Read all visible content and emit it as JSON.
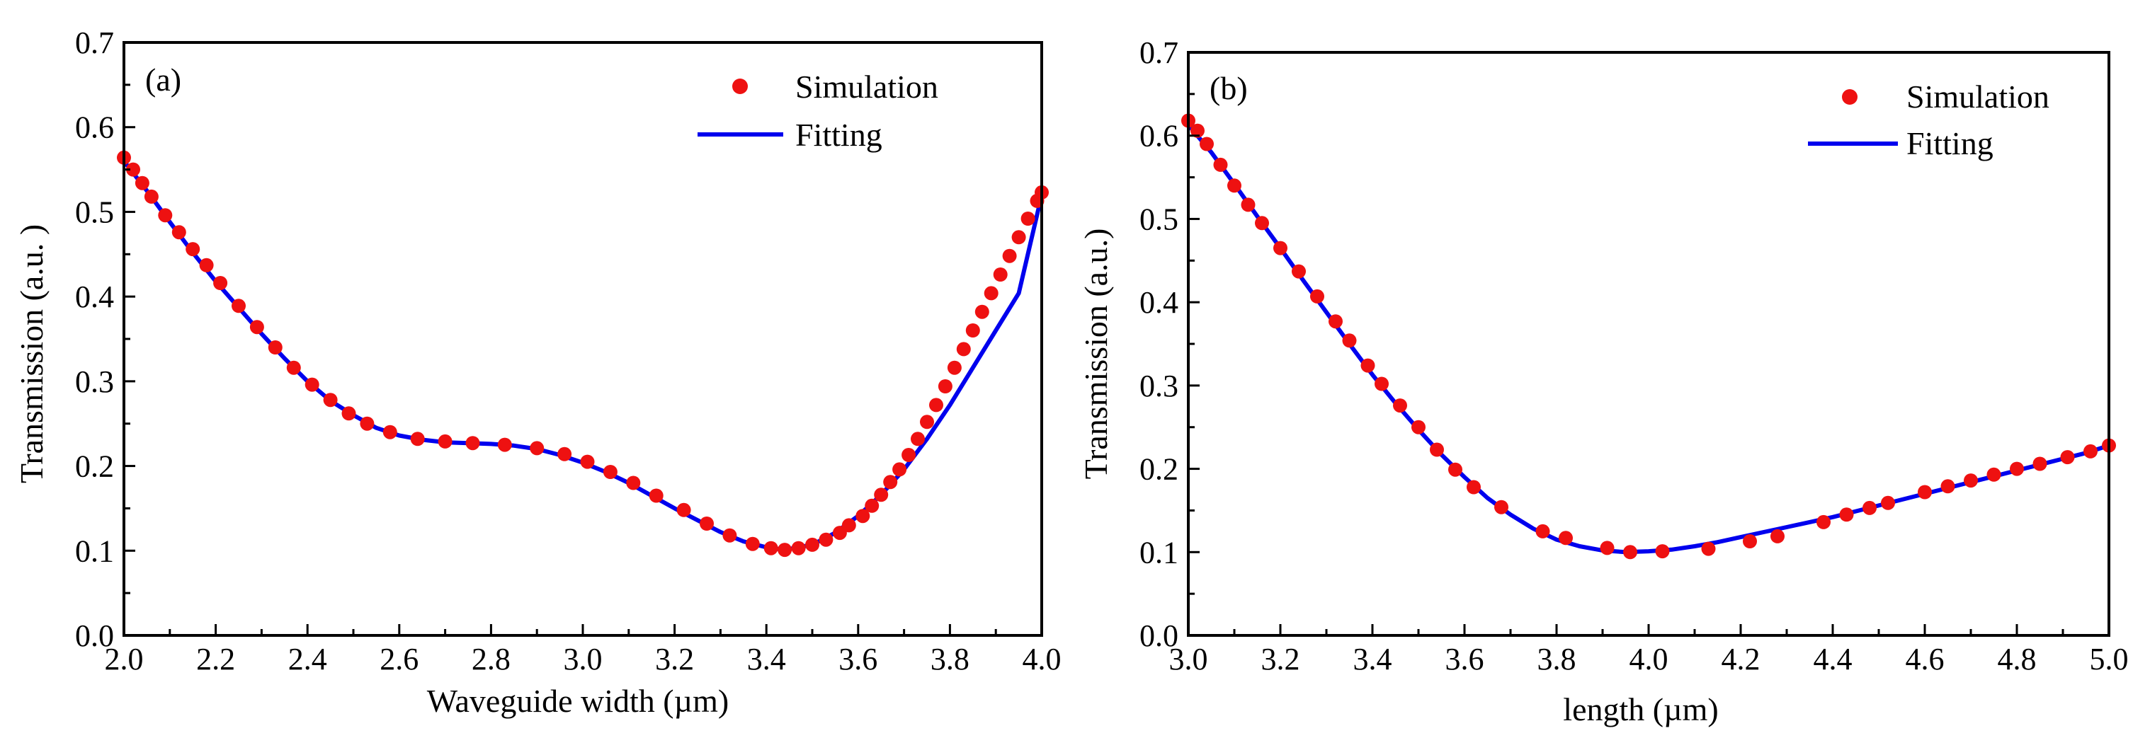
{
  "colors": {
    "simulation": "#ee1111",
    "fitting": "#0000ee",
    "axes": "#000000"
  },
  "chart_data": [
    {
      "type": "scatter",
      "panel_label": "(a)",
      "xlabel": "Waveguide width (µm)",
      "ylabel": "Transmission (a.u. )",
      "xlim": [
        2.0,
        4.0
      ],
      "ylim": [
        0.0,
        0.7
      ],
      "xticks": [
        2.0,
        2.2,
        2.4,
        2.6,
        2.8,
        3.0,
        3.2,
        3.4,
        3.6,
        3.8,
        4.0
      ],
      "xtick_labels": [
        "2.0",
        "2.2",
        "2.4",
        "2.6",
        "2.8",
        "3.0",
        "3.2",
        "3.4",
        "3.6",
        "3.8",
        "4.0"
      ],
      "yticks": [
        0.0,
        0.1,
        0.2,
        0.3,
        0.4,
        0.5,
        0.6,
        0.7
      ],
      "ytick_labels": [
        "0.0",
        "0.1",
        "0.2",
        "0.3",
        "0.4",
        "0.5",
        "0.6",
        "0.7"
      ],
      "legend": {
        "position": "top-right",
        "entries": [
          "Simulation",
          "Fitting"
        ]
      },
      "series": [
        {
          "name": "Simulation",
          "style": "markers",
          "x": [
            2.0,
            2.02,
            2.04,
            2.06,
            2.09,
            2.12,
            2.15,
            2.18,
            2.21,
            2.25,
            2.29,
            2.33,
            2.37,
            2.41,
            2.45,
            2.49,
            2.53,
            2.58,
            2.64,
            2.7,
            2.76,
            2.83,
            2.9,
            2.96,
            3.01,
            3.06,
            3.11,
            3.16,
            3.22,
            3.27,
            3.32,
            3.37,
            3.41,
            3.44,
            3.47,
            3.5,
            3.53,
            3.56,
            3.58,
            3.61,
            3.63,
            3.65,
            3.67,
            3.69,
            3.71,
            3.73,
            3.75,
            3.77,
            3.79,
            3.81,
            3.83,
            3.85,
            3.87,
            3.89,
            3.91,
            3.93,
            3.95,
            3.97,
            3.99,
            4.0
          ],
          "y": [
            0.564,
            0.55,
            0.534,
            0.518,
            0.496,
            0.476,
            0.456,
            0.437,
            0.416,
            0.389,
            0.364,
            0.34,
            0.316,
            0.296,
            0.278,
            0.262,
            0.25,
            0.24,
            0.232,
            0.229,
            0.227,
            0.225,
            0.221,
            0.214,
            0.205,
            0.193,
            0.18,
            0.165,
            0.148,
            0.132,
            0.118,
            0.108,
            0.103,
            0.101,
            0.103,
            0.107,
            0.113,
            0.121,
            0.13,
            0.141,
            0.153,
            0.166,
            0.181,
            0.196,
            0.213,
            0.232,
            0.252,
            0.272,
            0.294,
            0.316,
            0.338,
            0.36,
            0.382,
            0.404,
            0.426,
            0.448,
            0.47,
            0.492,
            0.513,
            0.523
          ]
        },
        {
          "name": "Fitting",
          "style": "line",
          "x": [
            2.0,
            2.05,
            2.1,
            2.15,
            2.2,
            2.25,
            2.3,
            2.35,
            2.4,
            2.45,
            2.5,
            2.55,
            2.6,
            2.65,
            2.7,
            2.75,
            2.8,
            2.85,
            2.9,
            2.95,
            3.0,
            3.05,
            3.1,
            3.15,
            3.2,
            3.25,
            3.3,
            3.35,
            3.4,
            3.44,
            3.5,
            3.55,
            3.6,
            3.65,
            3.7,
            3.75,
            3.8,
            3.85,
            3.9,
            3.95,
            4.0
          ],
          "y": [
            0.56,
            0.525,
            0.488,
            0.452,
            0.418,
            0.387,
            0.356,
            0.327,
            0.3,
            0.277,
            0.26,
            0.245,
            0.236,
            0.231,
            0.228,
            0.227,
            0.226,
            0.224,
            0.22,
            0.213,
            0.204,
            0.193,
            0.18,
            0.165,
            0.15,
            0.136,
            0.122,
            0.111,
            0.104,
            0.101,
            0.107,
            0.121,
            0.141,
            0.166,
            0.196,
            0.232,
            0.272,
            0.316,
            0.36,
            0.404,
            0.52
          ]
        }
      ]
    },
    {
      "type": "scatter",
      "panel_label": "(b)",
      "xlabel": "length (µm)",
      "ylabel": "Transmission (a.u.)",
      "xlim": [
        3.0,
        5.0
      ],
      "ylim": [
        0.0,
        0.7
      ],
      "xticks": [
        3.0,
        3.2,
        3.4,
        3.6,
        3.8,
        4.0,
        4.2,
        4.4,
        4.6,
        4.8,
        5.0
      ],
      "xtick_labels": [
        "3.0",
        "3.2",
        "3.4",
        "3.6",
        "3.8",
        "4.0",
        "4.2",
        "4.4",
        "4.6",
        "4.8",
        "5.0"
      ],
      "yticks": [
        0.0,
        0.1,
        0.2,
        0.3,
        0.4,
        0.5,
        0.6,
        0.7
      ],
      "ytick_labels": [
        "0.0",
        "0.1",
        "0.2",
        "0.3",
        "0.4",
        "0.5",
        "0.6",
        "0.7"
      ],
      "legend": {
        "position": "top-right",
        "entries": [
          "Simulation",
          "Fitting"
        ]
      },
      "series": [
        {
          "name": "Simulation",
          "style": "markers",
          "x": [
            3.0,
            3.02,
            3.04,
            3.07,
            3.1,
            3.13,
            3.16,
            3.2,
            3.24,
            3.28,
            3.32,
            3.35,
            3.39,
            3.42,
            3.46,
            3.5,
            3.54,
            3.58,
            3.62,
            3.68,
            3.77,
            3.82,
            3.91,
            3.96,
            4.03,
            4.13,
            4.22,
            4.28,
            4.38,
            4.43,
            4.48,
            4.52,
            4.6,
            4.65,
            4.7,
            4.75,
            4.8,
            4.85,
            4.91,
            4.96,
            5.0
          ],
          "y": [
            0.618,
            0.606,
            0.59,
            0.565,
            0.54,
            0.517,
            0.495,
            0.465,
            0.437,
            0.407,
            0.377,
            0.354,
            0.324,
            0.302,
            0.276,
            0.25,
            0.223,
            0.199,
            0.178,
            0.154,
            0.125,
            0.117,
            0.105,
            0.1,
            0.101,
            0.104,
            0.113,
            0.119,
            0.136,
            0.145,
            0.153,
            0.159,
            0.172,
            0.179,
            0.186,
            0.193,
            0.2,
            0.206,
            0.214,
            0.221,
            0.228
          ]
        },
        {
          "name": "Fitting",
          "style": "line",
          "x": [
            3.0,
            3.05,
            3.1,
            3.15,
            3.2,
            3.25,
            3.3,
            3.35,
            3.4,
            3.45,
            3.5,
            3.55,
            3.6,
            3.65,
            3.7,
            3.75,
            3.8,
            3.85,
            3.9,
            3.95,
            4.0,
            4.05,
            4.1,
            4.15,
            4.2,
            4.25,
            4.3,
            4.35,
            4.4,
            4.45,
            4.5,
            4.55,
            4.6,
            4.65,
            4.7,
            4.75,
            4.8,
            4.85,
            4.9,
            4.95,
            5.0
          ],
          "y": [
            0.613,
            0.58,
            0.542,
            0.503,
            0.465,
            0.426,
            0.388,
            0.35,
            0.313,
            0.279,
            0.247,
            0.217,
            0.19,
            0.165,
            0.145,
            0.128,
            0.115,
            0.107,
            0.102,
            0.1,
            0.101,
            0.103,
            0.107,
            0.112,
            0.118,
            0.124,
            0.13,
            0.136,
            0.142,
            0.149,
            0.156,
            0.163,
            0.17,
            0.177,
            0.184,
            0.191,
            0.198,
            0.205,
            0.212,
            0.219,
            0.228
          ]
        }
      ]
    }
  ]
}
